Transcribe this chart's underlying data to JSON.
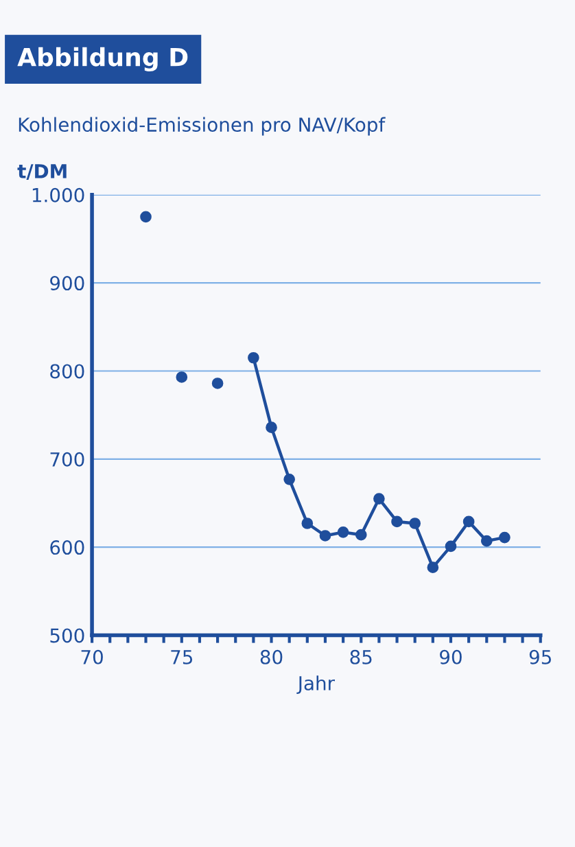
{
  "chart_data": {
    "type": "line",
    "title": "Abbildung D",
    "subtitle": "Kohlendioxid-Emissionen pro NAV/Kopf",
    "xlabel": "Jahr",
    "ylabel": "t/DM",
    "x": [
      73,
      74,
      75,
      76,
      77,
      78,
      79,
      80,
      81,
      82,
      83,
      84,
      85,
      86,
      87,
      88,
      89,
      90,
      91,
      92,
      93
    ],
    "series": [
      {
        "color": "#1f4e9c",
        "values": [
          975,
          null,
          793,
          null,
          786,
          null,
          815,
          736,
          677,
          627,
          613,
          617,
          614,
          655,
          629,
          627,
          577,
          601,
          629,
          607,
          611
        ]
      }
    ],
    "xlim": [
      70,
      95
    ],
    "xticks": [
      70,
      {
        "value": 71,
        "label": null
      },
      {
        "value": 72,
        "label": null
      },
      {
        "value": 73,
        "label": null
      },
      {
        "value": 74,
        "label": null
      },
      75,
      {
        "value": 76,
        "label": null
      },
      {
        "value": 77,
        "label": null
      },
      {
        "value": 78,
        "label": null
      },
      {
        "value": 79,
        "label": null
      },
      80,
      {
        "value": 81,
        "label": null
      },
      {
        "value": 82,
        "label": null
      },
      {
        "value": 83,
        "label": null
      },
      {
        "value": 84,
        "label": null
      },
      85,
      {
        "value": 86,
        "label": null
      },
      {
        "value": 87,
        "label": null
      },
      {
        "value": 88,
        "label": null
      },
      {
        "value": 89,
        "label": null
      },
      90,
      {
        "value": 91,
        "label": null
      },
      {
        "value": 92,
        "label": null
      },
      {
        "value": 93,
        "label": null
      },
      {
        "value": 94,
        "label": null
      },
      95
    ],
    "ylim": [
      500,
      1000
    ],
    "yticks": [
      500,
      600,
      700,
      800,
      900,
      {
        "value": 1000,
        "label": "1.000"
      }
    ],
    "grid": "y",
    "marker": "circle",
    "line_style": "solid"
  }
}
